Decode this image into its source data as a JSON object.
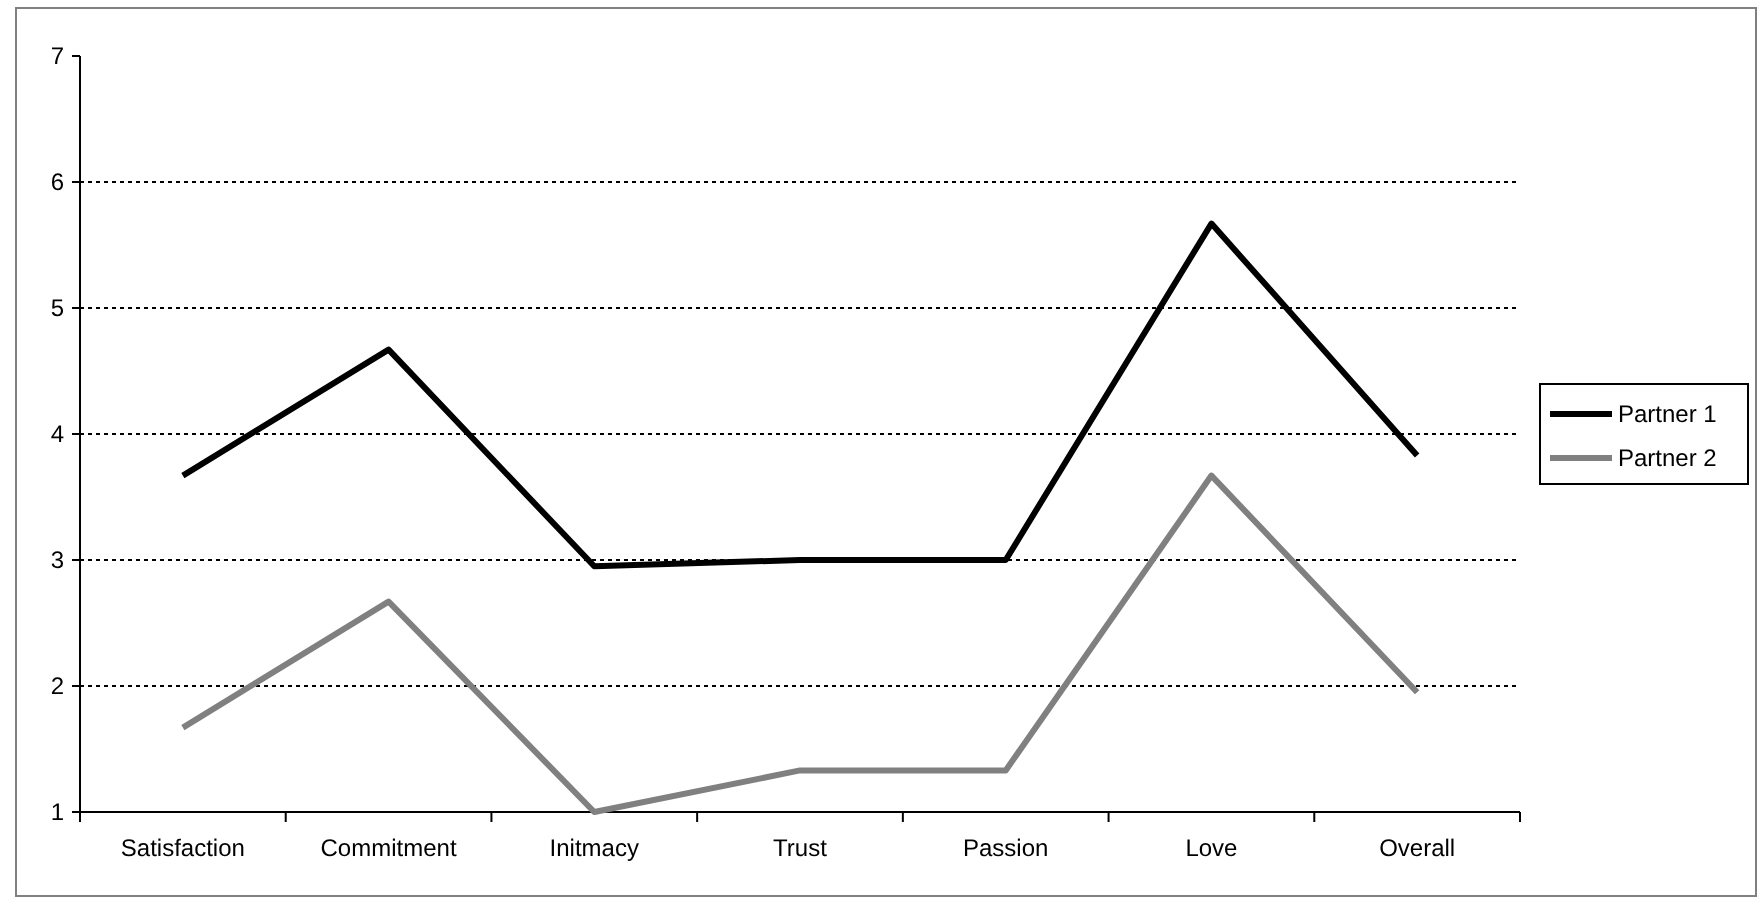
{
  "chart_data": {
    "type": "line",
    "categories": [
      "Satisfaction",
      "Commitment",
      "Initmacy",
      "Trust",
      "Passion",
      "Love",
      "Overall"
    ],
    "series": [
      {
        "name": "Partner 1",
        "color": "#000000",
        "values": [
          3.67,
          4.67,
          2.95,
          3.0,
          3.0,
          5.67,
          3.83
        ]
      },
      {
        "name": "Partner 2",
        "color": "#808080",
        "values": [
          1.67,
          2.67,
          1.0,
          1.33,
          1.33,
          3.67,
          1.95
        ]
      }
    ],
    "ylim": [
      1,
      7
    ],
    "yticks": [
      1,
      2,
      3,
      4,
      5,
      6,
      7
    ],
    "grid": "y",
    "legend": "right",
    "marker": "none",
    "line_style": "solid"
  }
}
